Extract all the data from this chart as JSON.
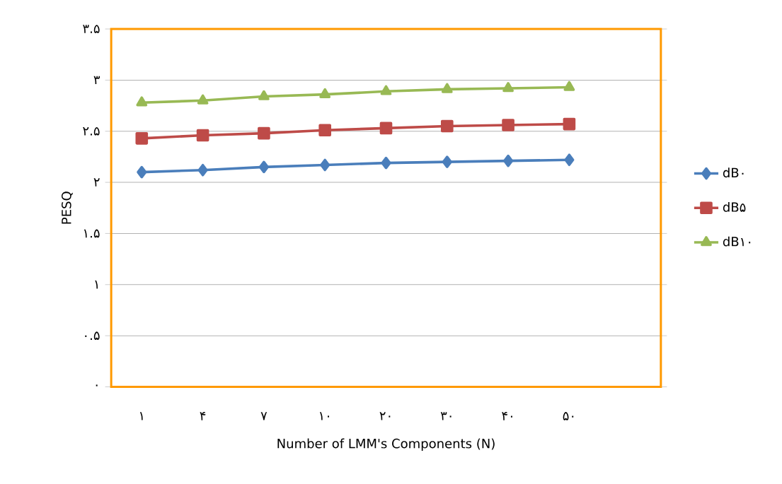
{
  "chart_data": {
    "type": "line",
    "xlabel": "Number of LMM's Components (N)",
    "ylabel": "PESQ",
    "categories": [
      "۱",
      "۴",
      "۷",
      "۱۰",
      "۲۰",
      "۳۰",
      "۴۰",
      "۵۰"
    ],
    "series": [
      {
        "name": "dB۰",
        "color": "#4a7ebb",
        "marker": "diamond",
        "values": [
          2.1,
          2.12,
          2.15,
          2.17,
          2.19,
          2.2,
          2.21,
          2.22
        ]
      },
      {
        "name": "dB۵",
        "color": "#be4b48",
        "marker": "square",
        "values": [
          2.43,
          2.46,
          2.48,
          2.51,
          2.53,
          2.55,
          2.56,
          2.57
        ]
      },
      {
        "name": "dB۱۰",
        "color": "#98b954",
        "marker": "triangle",
        "values": [
          2.78,
          2.8,
          2.84,
          2.86,
          2.89,
          2.91,
          2.92,
          2.93
        ]
      }
    ],
    "ylim": [
      0,
      3.5
    ],
    "yticks": [
      {
        "value": 0,
        "label": "۰"
      },
      {
        "value": 0.5,
        "label": "۰.۵"
      },
      {
        "value": 1,
        "label": "۱"
      },
      {
        "value": 1.5,
        "label": "۱.۵"
      },
      {
        "value": 2,
        "label": "۲"
      },
      {
        "value": 2.5,
        "label": "۲.۵"
      },
      {
        "value": 3,
        "label": "۳"
      },
      {
        "value": 3.5,
        "label": "۳.۵"
      }
    ],
    "grid": "y",
    "legend": "right",
    "line_style": "solid"
  }
}
